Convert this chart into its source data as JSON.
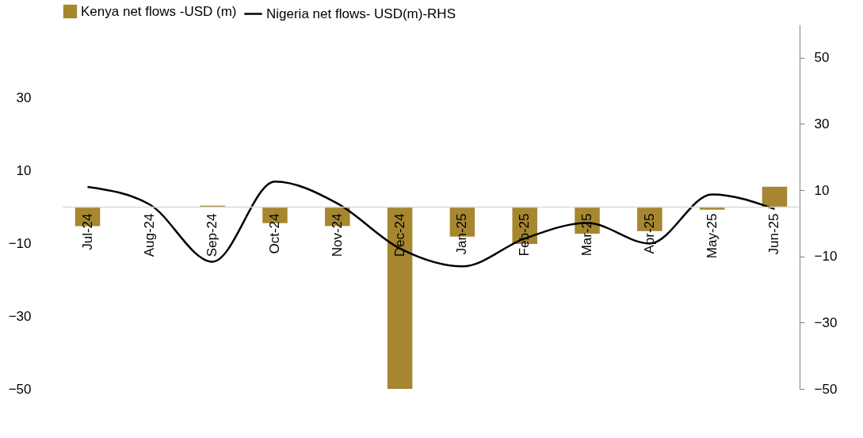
{
  "chart_data": {
    "type": "bar",
    "categories": [
      "Jul-24",
      "Aug-24",
      "Sep-24",
      "Oct-24",
      "Nov-24",
      "Dec-24",
      "Jan-25",
      "Feb-25",
      "Mar-25",
      "Apr-25",
      "May-25",
      "Jun-25"
    ],
    "series": [
      {
        "name": "Kenya net flows -USD (m)",
        "color": "#a6862f",
        "values": [
          -5.3,
          0,
          0.3,
          -4.5,
          -5.3,
          -50,
          -8.2,
          -10.2,
          -7.4,
          -6.7,
          -0.8,
          5.5
        ]
      },
      {
        "name": "Nigeria net flows- USD(m)-RHS",
        "type": "line",
        "axis": "y2",
        "color": "#000000",
        "values": [
          11.0,
          5.6,
          -11.6,
          12.6,
          6.0,
          -7.6,
          -13.0,
          -4.6,
          0.1,
          -6.1,
          8.7,
          4.3
        ]
      }
    ],
    "ylim": [
      -50,
      50
    ],
    "yticks": [
      -50,
      -30,
      -10,
      10,
      30
    ],
    "y2lim": [
      -50,
      60
    ],
    "y2ticks": [
      -50,
      -30,
      -10,
      10,
      30,
      50
    ],
    "grid": false,
    "legend": "top",
    "marker": "none",
    "line_style": "solid"
  }
}
